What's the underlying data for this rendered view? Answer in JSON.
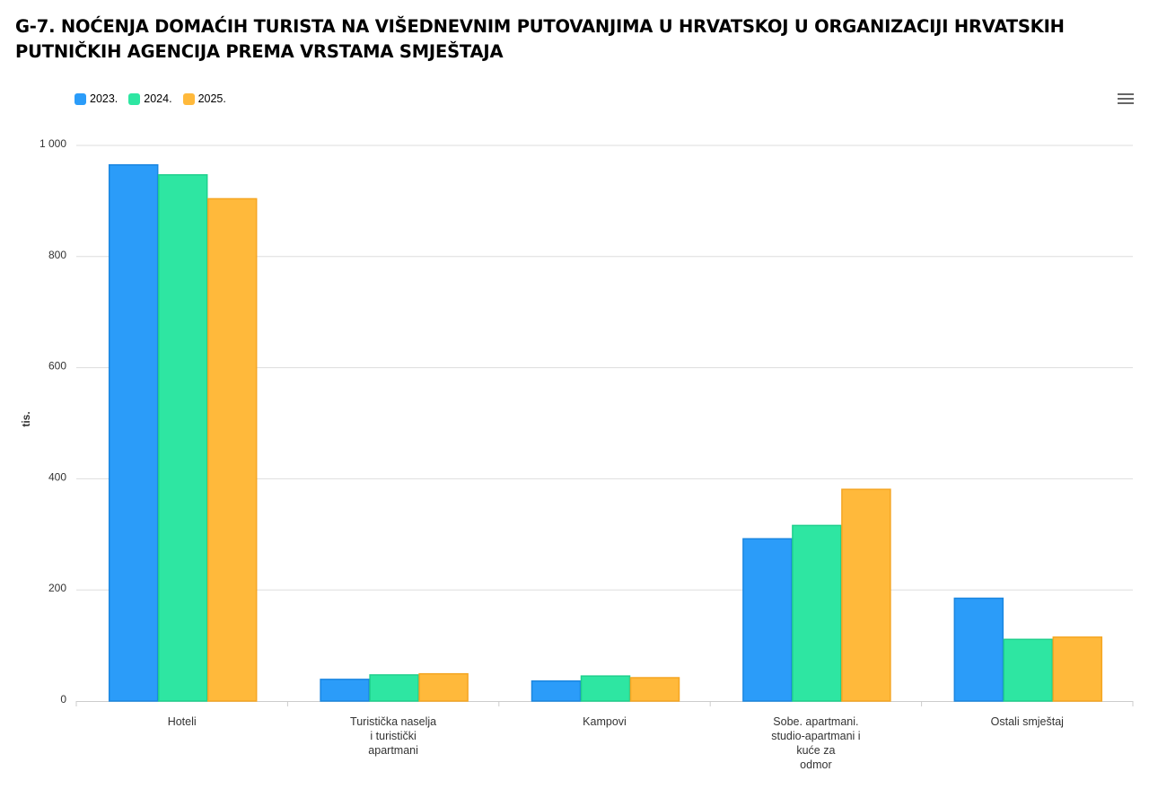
{
  "title": "G-7. NOĆENJA DOMAĆIH TURISTA NA VIŠEDNEVNIM PUTOVANJIMA U HRVATSKOJ U ORGANIZACIJI HRVATSKIH PUTNIČKIH AGENCIJA PREMA VRSTAMA SMJEŠTAJA",
  "menu_icon": "hamburger-menu-icon",
  "colors": {
    "series": [
      "#2b9cf9",
      "#2ee6a2",
      "#ffb93b"
    ],
    "series_border": [
      "#1a86e0",
      "#1fd08d",
      "#f5a623"
    ],
    "grid": "#dddddd",
    "axis": "#cccccc"
  },
  "chart_data": {
    "type": "bar",
    "title": "G-7. NOĆENJA DOMAĆIH TURISTA NA VIŠEDNEVNIM PUTOVANJIMA U HRVATSKOJ U ORGANIZACIJI HRVATSKIH PUTNIČKIH AGENCIJA PREMA VRSTAMA SMJEŠTAJA",
    "xlabel": "",
    "ylabel": "tis.",
    "ylim": [
      0,
      1000
    ],
    "yticks": [
      0,
      200,
      400,
      600,
      800,
      1000
    ],
    "ytick_labels": [
      "0",
      "200",
      "400",
      "600",
      "800",
      "1 000"
    ],
    "grid": true,
    "legend_position": "top-left",
    "categories": [
      [
        "Hoteli"
      ],
      [
        "Turistička naselja",
        "i turistički",
        "apartmani"
      ],
      [
        "Kampovi"
      ],
      [
        "Sobe. apartmani.",
        "studio-apartmani i",
        "kuće za",
        "odmor"
      ],
      [
        "Ostali smještaj"
      ]
    ],
    "series": [
      {
        "name": "2023.",
        "values": [
          965,
          39,
          36,
          292,
          185
        ]
      },
      {
        "name": "2024.",
        "values": [
          947,
          47,
          45,
          316,
          111
        ]
      },
      {
        "name": "2025.",
        "values": [
          904,
          49,
          42,
          381,
          115
        ]
      }
    ]
  }
}
